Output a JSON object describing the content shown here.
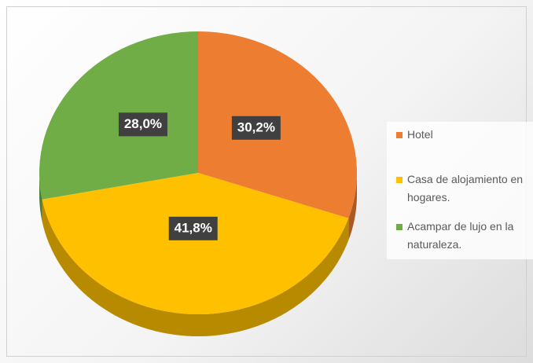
{
  "chart_data": {
    "type": "pie",
    "categories": [
      "Hotel",
      "Casa de alojamiento en hogares.",
      "Acampar de lujo en la naturaleza."
    ],
    "values": [
      30.2,
      41.8,
      28.0
    ],
    "value_labels": [
      "30,2%",
      "41,8%",
      "28,0%"
    ],
    "colors": [
      "#ED7D31",
      "#FFC000",
      "#70AD47"
    ],
    "legend": "right"
  }
}
